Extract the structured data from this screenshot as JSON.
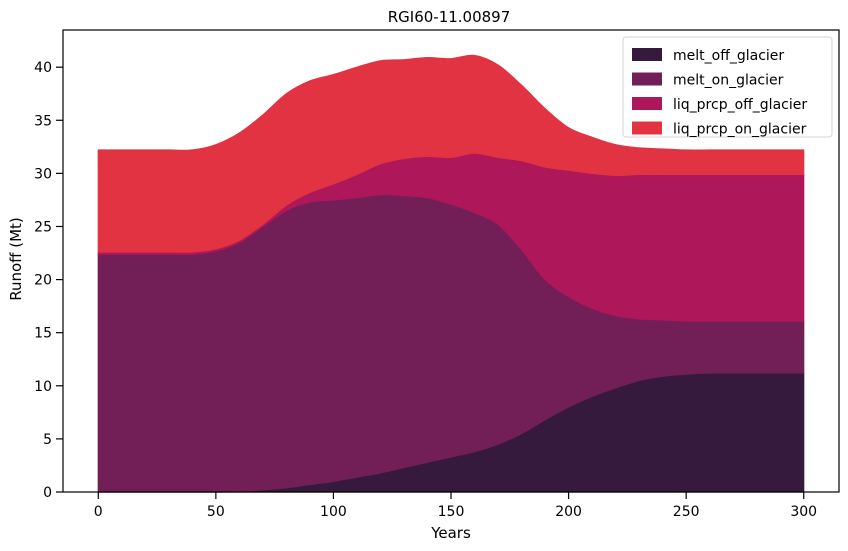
{
  "chart_data": {
    "type": "area",
    "stacked": true,
    "title": "RGI60-11.00897",
    "xlabel": "Years",
    "ylabel": "Runoff (Mt)",
    "xlim": [
      -15,
      315
    ],
    "ylim": [
      0,
      43.5
    ],
    "xticks": [
      0,
      50,
      100,
      150,
      200,
      250,
      300
    ],
    "yticks": [
      0,
      5,
      10,
      15,
      20,
      25,
      30,
      35,
      40
    ],
    "legend_position": "top-right",
    "x": [
      0,
      10,
      20,
      30,
      40,
      50,
      60,
      70,
      80,
      90,
      100,
      110,
      120,
      130,
      140,
      150,
      160,
      170,
      180,
      190,
      200,
      210,
      220,
      230,
      240,
      250,
      260,
      270,
      280,
      290,
      300
    ],
    "series": [
      {
        "name": "melt_off_glacier",
        "color": "#361a3e",
        "values": [
          0,
          0,
          0,
          0,
          0,
          0,
          0.05,
          0.2,
          0.4,
          0.7,
          1.0,
          1.4,
          1.8,
          2.3,
          2.8,
          3.3,
          3.8,
          4.5,
          5.5,
          6.8,
          8.0,
          9.0,
          9.8,
          10.5,
          10.9,
          11.1,
          11.2,
          11.2,
          11.2,
          11.2,
          11.2
        ]
      },
      {
        "name": "melt_on_glacier",
        "color": "#721f57",
        "values": [
          22.4,
          22.4,
          22.4,
          22.4,
          22.4,
          22.7,
          23.45,
          24.8,
          26.1,
          26.6,
          26.5,
          26.3,
          26.2,
          25.6,
          24.9,
          23.8,
          22.5,
          20.7,
          17.3,
          13.2,
          10.4,
          8.3,
          6.8,
          5.8,
          5.3,
          5.0,
          4.9,
          4.9,
          4.9,
          4.9,
          4.9
        ]
      },
      {
        "name": "liq_prcp_off_glacier",
        "color": "#ae1759",
        "values": [
          0.2,
          0.2,
          0.2,
          0.2,
          0.2,
          0.2,
          0.2,
          0.2,
          0.5,
          0.9,
          1.5,
          2.2,
          2.9,
          3.5,
          3.9,
          4.4,
          5.6,
          6.3,
          8.4,
          10.6,
          11.9,
          12.7,
          13.2,
          13.6,
          13.7,
          13.8,
          13.8,
          13.8,
          13.8,
          13.8,
          13.8
        ]
      },
      {
        "name": "liq_prcp_on_glacier",
        "color": "#e13342",
        "values": [
          9.6,
          9.6,
          9.6,
          9.6,
          9.6,
          9.8,
          10.1,
          10.3,
          10.5,
          10.5,
          10.3,
          10.1,
          9.7,
          9.3,
          9.3,
          9.3,
          9.2,
          8.7,
          7.1,
          5.5,
          4.0,
          3.4,
          2.9,
          2.5,
          2.4,
          2.3,
          2.3,
          2.3,
          2.3,
          2.3,
          2.3
        ]
      }
    ]
  }
}
